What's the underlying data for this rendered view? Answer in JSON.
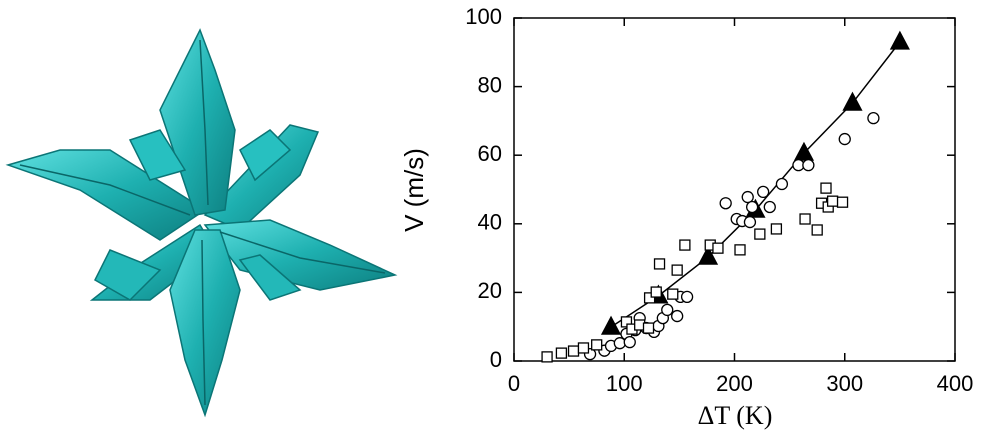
{
  "chart_data": {
    "type": "scatter",
    "xlabel": "ΔT (K)",
    "ylabel": "V (m/s)",
    "xlim": [
      0,
      400
    ],
    "ylim": [
      0,
      100
    ],
    "xticks": [
      0,
      100,
      200,
      300,
      400
    ],
    "yticks": [
      0,
      20,
      40,
      60,
      80,
      100
    ],
    "grid": false,
    "series": [
      {
        "color": "#000000",
        "marker": "triangle",
        "filled": true,
        "line": true,
        "x": [
          88,
          131,
          176,
          219,
          263,
          307,
          350
        ],
        "values": [
          9.9,
          19,
          30.3,
          44,
          60.6,
          75.2,
          93
        ]
      },
      {
        "color": "#000000",
        "marker": "circle",
        "filled": false,
        "line": false,
        "x": [
          69,
          82,
          88,
          96,
          102,
          105,
          110,
          114,
          120,
          127,
          131,
          135,
          139,
          148,
          151,
          157,
          192,
          202,
          207,
          212,
          214,
          216,
          226,
          232,
          243,
          258,
          267,
          300,
          326
        ],
        "values": [
          2,
          3,
          4.4,
          5.2,
          7.9,
          5.5,
          9,
          12.5,
          9.6,
          8.5,
          10.2,
          12.5,
          14.9,
          13.1,
          18.7,
          18.7,
          46,
          41.4,
          40.8,
          47.8,
          40.5,
          44.9,
          49.3,
          44.9,
          51.6,
          57.1,
          57.1,
          64.7,
          70.8
        ]
      },
      {
        "color": "#000000",
        "marker": "square",
        "filled": false,
        "line": false,
        "x": [
          30,
          43,
          54,
          63,
          75,
          102,
          107,
          114,
          122,
          123,
          129,
          132,
          144,
          148,
          155,
          178,
          185,
          205,
          223,
          238,
          264,
          275,
          283,
          279,
          285,
          289,
          298
        ],
        "values": [
          1.2,
          2.3,
          2.9,
          3.8,
          4.7,
          11.4,
          9.3,
          10.5,
          9.6,
          18.4,
          20.1,
          28.3,
          19.5,
          26.5,
          33.8,
          33.8,
          32.9,
          32.4,
          37,
          38.5,
          41.4,
          38.2,
          50.4,
          46,
          44.9,
          46.6,
          46.3
        ]
      }
    ]
  }
}
